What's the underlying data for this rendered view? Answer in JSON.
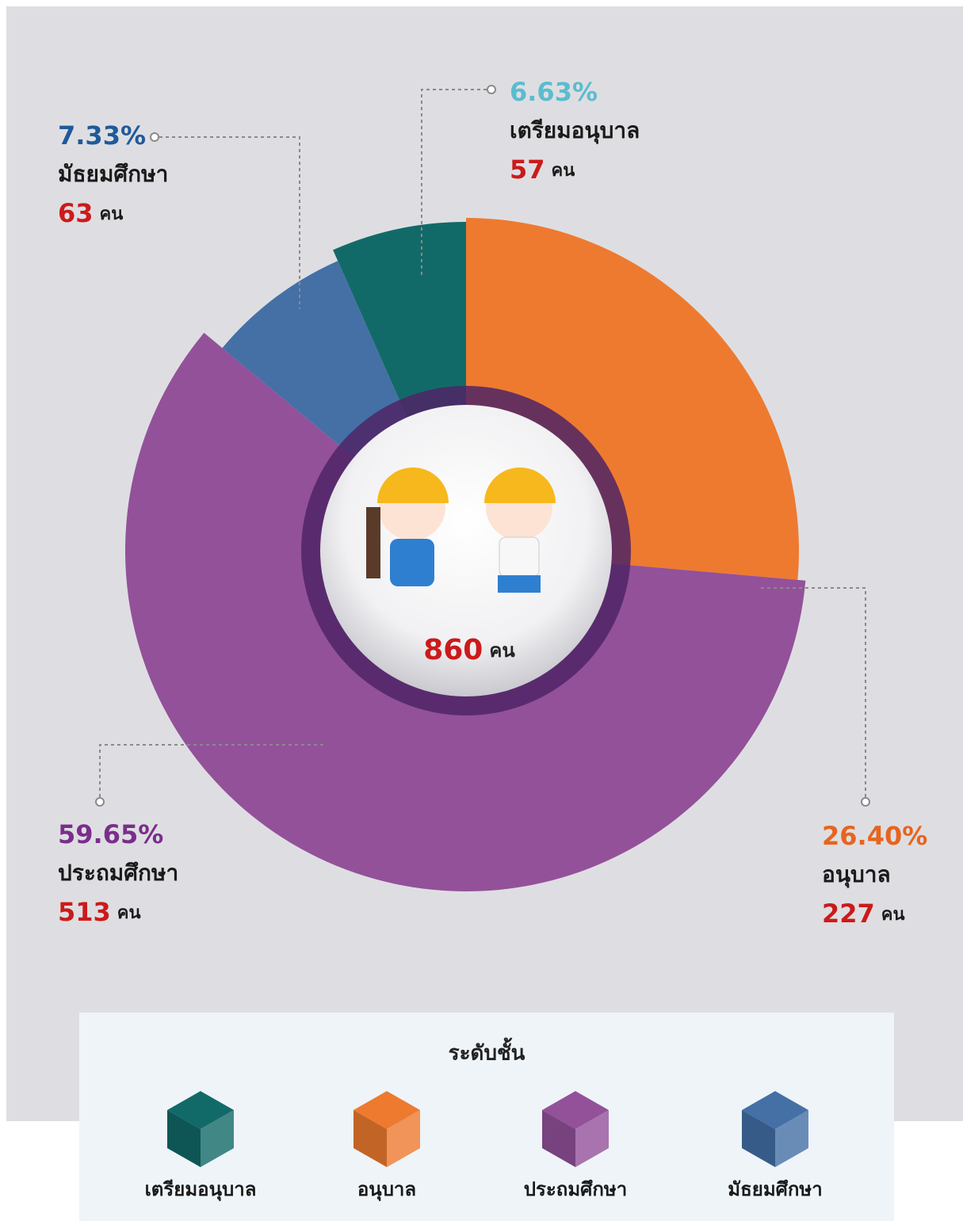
{
  "chart_data": {
    "type": "pie",
    "categories": [
      "เตรียมอนุบาล",
      "อนุบาล",
      "ประถมศึกษา",
      "มัธยมศึกษา"
    ],
    "values": [
      6.63,
      26.4,
      59.65,
      7.33
    ],
    "value_labels": [
      "6.63%",
      "26.40%",
      "59.65%",
      "7.33%"
    ],
    "counts": [
      57,
      227,
      513,
      63
    ],
    "unit": "คน",
    "total": 860,
    "colors": [
      "#126a68",
      "#ee7a30",
      "#93519a",
      "#4470a6"
    ],
    "label_colors": [
      "#5bbcd0",
      "#e8641e",
      "#7a2e8a",
      "#1f5a9a"
    ],
    "legend_title": "ระดับชั้น"
  }
}
